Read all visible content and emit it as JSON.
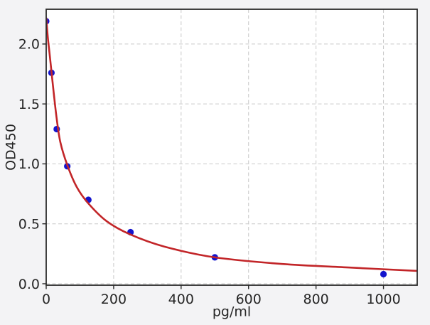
{
  "figure": {
    "background_color": "#f3f3f5",
    "plot_background_color": "#ffffff",
    "spine_color": "#2b2b2b",
    "grid_color": "#c9c9c9",
    "tick_color": "#2b2b2b",
    "text_color": "#262626"
  },
  "chart_data": {
    "type": "scatter",
    "title": "",
    "xlabel": "pg/ml",
    "ylabel": "OD450",
    "xlim": [
      0,
      1100
    ],
    "ylim": [
      -0.012,
      2.29
    ],
    "x_ticks": [
      0,
      200,
      400,
      600,
      800,
      1000
    ],
    "x_tick_labels": [
      "0",
      "200",
      "400",
      "600",
      "800",
      "1000"
    ],
    "y_ticks": [
      0.0,
      0.5,
      1.0,
      1.5,
      2.0
    ],
    "y_tick_labels": [
      "0.0",
      "0.5",
      "1.0",
      "1.5",
      "2.0"
    ],
    "grid": true,
    "grid_style": "dashed",
    "legend": null,
    "series": [
      {
        "name": "standard-points",
        "type": "scatter",
        "color": "#1414cd",
        "x": [
          0,
          15.6,
          31.2,
          62.5,
          125,
          250,
          500,
          1000
        ],
        "y": [
          2.19,
          1.76,
          1.29,
          0.98,
          0.7,
          0.43,
          0.22,
          0.08
        ]
      },
      {
        "name": "fitted-curve",
        "type": "line",
        "color": "#c22528",
        "fit": "4PL",
        "x": [
          0,
          5,
          10,
          16,
          22,
          31,
          42,
          62.5,
          90,
          125,
          180,
          250,
          350,
          500,
          700,
          900,
          1100
        ],
        "y": [
          2.22,
          2.05,
          1.92,
          1.76,
          1.6,
          1.38,
          1.18,
          0.99,
          0.81,
          0.67,
          0.52,
          0.41,
          0.31,
          0.22,
          0.165,
          0.135,
          0.107
        ]
      }
    ]
  }
}
